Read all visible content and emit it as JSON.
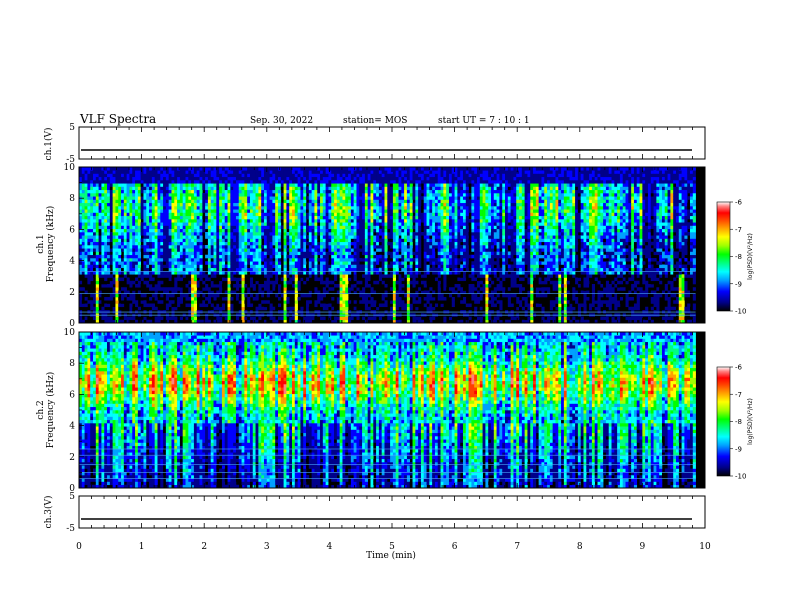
{
  "header": {
    "title": "VLF Spectra",
    "date": "Sep. 30, 2022",
    "station": "station= MOS",
    "start": "start  UT  =   7 : 10 : 1"
  },
  "colors": {
    "colormap": [
      "#000000",
      "#00008a",
      "#0000ff",
      "#00a0ff",
      "#00ffff",
      "#00ff80",
      "#00ff00",
      "#a0ff00",
      "#ffff00",
      "#ffa000",
      "#ff4000",
      "#ff0000",
      "#ff8080",
      "#ffffff"
    ]
  },
  "chart_data": [
    {
      "type": "line",
      "ylabel": "ch.1(V)",
      "ylim": [
        -5,
        5
      ],
      "yticks": [
        "5",
        "-5"
      ],
      "xlim": [
        0,
        10
      ],
      "trace_level": -2.2
    },
    {
      "type": "heatmap",
      "ylabel": "ch.1\nFrequency (kHz)",
      "ylim": [
        0,
        10
      ],
      "yticks": [
        "0",
        "2",
        "4",
        "6",
        "8",
        "10"
      ],
      "xlim": [
        0,
        10
      ],
      "data_end_min": 9.85,
      "colorbar": {
        "label": "log(PSD)(V²/Hz)",
        "range": [
          -10,
          -6
        ],
        "ticks": [
          "-6",
          "-7",
          "-8",
          "-9",
          "-10"
        ]
      }
    },
    {
      "type": "heatmap",
      "ylabel": "ch.2\nFrequency (kHz)",
      "ylim": [
        0,
        10
      ],
      "yticks": [
        "0",
        "2",
        "4",
        "6",
        "8",
        "10"
      ],
      "xlim": [
        0,
        10
      ],
      "data_end_min": 9.85,
      "colorbar": {
        "label": "log(PSD)(V²/Hz)",
        "range": [
          -10,
          -6
        ],
        "ticks": [
          "-6",
          "-7",
          "-8",
          "-9",
          "-10"
        ]
      }
    },
    {
      "type": "line",
      "ylabel": "ch.3(V)",
      "ylim": [
        -5,
        5
      ],
      "yticks": [
        "5",
        "-5"
      ],
      "xlim": [
        0,
        10
      ],
      "trace_level": -2.2,
      "xlabel": "Time  (min)",
      "xticks": [
        "0",
        "1",
        "2",
        "3",
        "4",
        "5",
        "6",
        "7",
        "8",
        "9",
        "10"
      ]
    }
  ]
}
